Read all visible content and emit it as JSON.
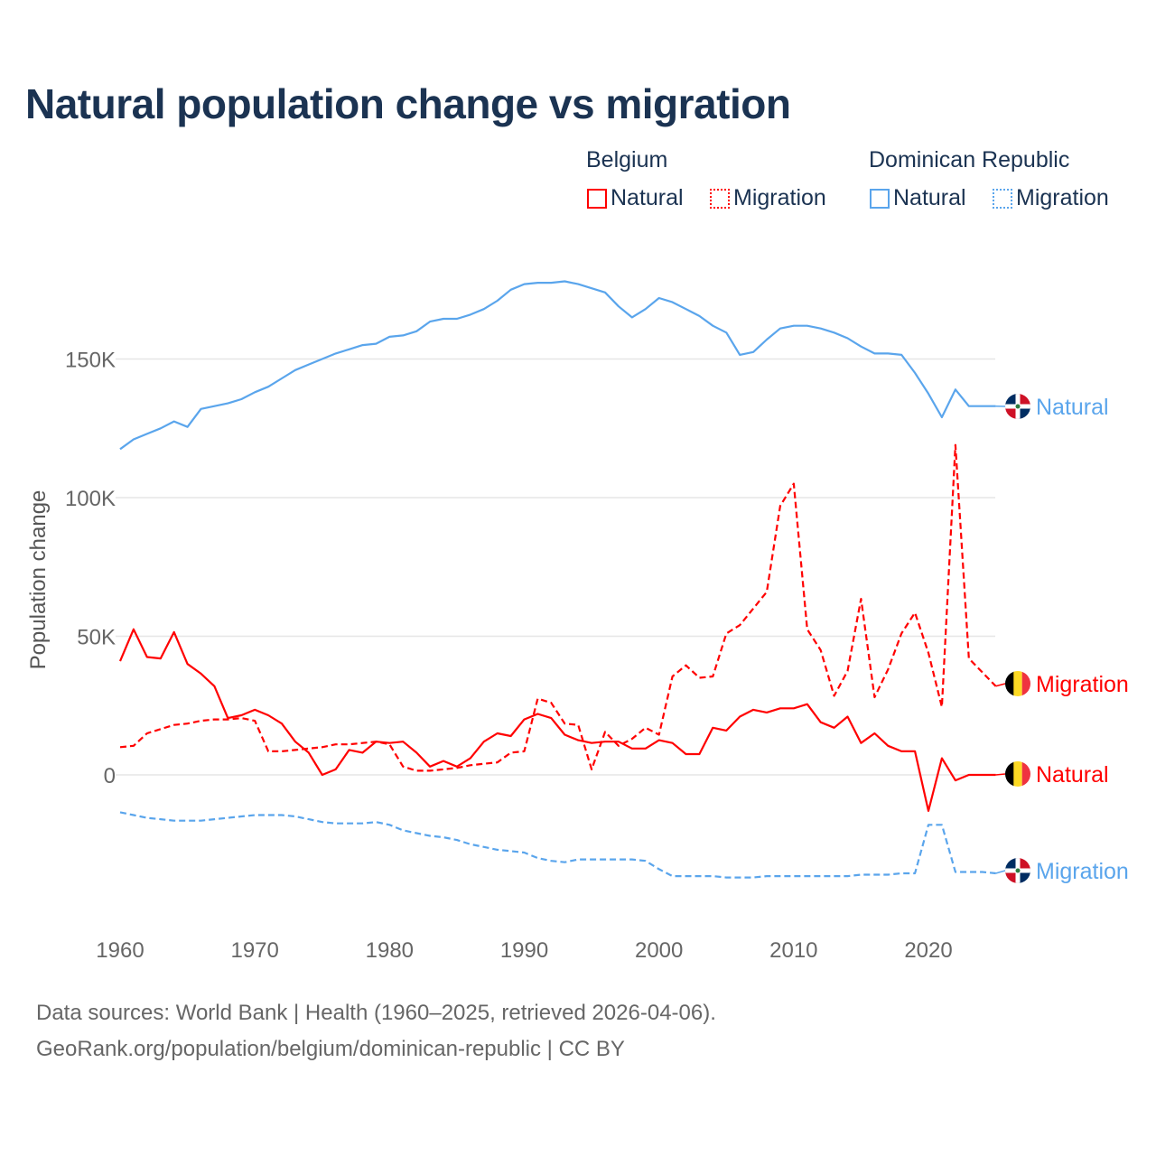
{
  "title": "Natural population change vs migration",
  "legend": {
    "groups": [
      {
        "name": "Belgium",
        "items": [
          "Natural",
          "Migration"
        ],
        "color": "#ff0000"
      },
      {
        "name": "Dominican Republic",
        "items": [
          "Natural",
          "Migration"
        ],
        "color": "#5aa5ec"
      }
    ]
  },
  "footer": {
    "line1": "Data sources: World Bank | Health (1960–2025, retrieved 2026-04-06).",
    "line2": "GeoRank.org/population/belgium/dominican-republic | CC BY"
  },
  "chart_data": {
    "type": "line",
    "title": "Natural population change vs migration",
    "xlabel": "",
    "ylabel": "Population change",
    "xlim": [
      1960,
      2025
    ],
    "ylim": [
      -45000,
      185000
    ],
    "x_ticks": [
      1960,
      1970,
      1980,
      1990,
      2000,
      2010,
      2020
    ],
    "x_tick_labels": [
      "1960",
      "1970",
      "1980",
      "1990",
      "2000",
      "2010",
      "2020"
    ],
    "y_ticks": [
      0,
      50000,
      100000,
      150000
    ],
    "y_tick_labels": [
      "0",
      "50K",
      "100K",
      "150K"
    ],
    "grid": "horizontal",
    "x_start": 1960,
    "series": [
      {
        "name": "Dominican Republic Natural",
        "label": "Natural",
        "country": "Dominican Republic",
        "color": "#5aa5ec",
        "dash": "solid",
        "values": [
          117.5,
          121,
          123,
          125,
          127.5,
          125.5,
          132,
          133,
          134,
          135.5,
          138,
          140,
          143,
          146,
          148,
          150,
          152,
          153.5,
          155,
          155.5,
          158,
          158.5,
          160,
          163.5,
          164.5,
          164.5,
          166,
          168,
          171,
          175,
          177,
          177.5,
          177.5,
          178,
          177,
          175.5,
          174,
          169,
          165,
          168,
          172,
          170.5,
          168,
          165.5,
          162,
          159.5,
          151.5,
          152.5,
          157,
          161,
          162,
          162,
          161,
          159.5,
          157.5,
          154.5,
          152,
          152,
          151.5,
          145,
          137.5,
          129,
          139,
          133,
          133,
          133
        ]
      },
      {
        "name": "Dominican Republic Migration",
        "label": "Migration",
        "country": "Dominican Republic",
        "color": "#5aa5ec",
        "dash": "dashed",
        "values": [
          -13.5,
          -14.5,
          -15.5,
          -16,
          -16.5,
          -16.5,
          -16.5,
          -16,
          -15.5,
          -15,
          -14.5,
          -14.5,
          -14.5,
          -15,
          -16,
          -17,
          -17.5,
          -17.5,
          -17.5,
          -17,
          -18,
          -20,
          -21,
          -22,
          -22.5,
          -23.5,
          -25,
          -26,
          -27,
          -27.5,
          -28,
          -30,
          -31,
          -31.5,
          -30.5,
          -30.5,
          -30.5,
          -30.5,
          -30.5,
          -31,
          -34,
          -36.5,
          -36.5,
          -36.5,
          -36.5,
          -37,
          -37,
          -37,
          -36.5,
          -36.5,
          -36.5,
          -36.5,
          -36.5,
          -36.5,
          -36.5,
          -36,
          -36,
          -36,
          -35.5,
          -35.5,
          -18,
          -18,
          -35,
          -35,
          -35,
          -35.5
        ]
      },
      {
        "name": "Belgium Natural",
        "label": "Natural",
        "country": "Belgium",
        "color": "#ff0000",
        "dash": "solid",
        "values": [
          41,
          52.5,
          42.5,
          42,
          51.5,
          40,
          36.5,
          32,
          20.5,
          21.5,
          23.5,
          21.5,
          18.5,
          12,
          8,
          0,
          2,
          9,
          8,
          12,
          11.5,
          12,
          8,
          3,
          5,
          3,
          6,
          12,
          15,
          14,
          20,
          22,
          20.5,
          14.5,
          12.5,
          11.5,
          12,
          12,
          9.5,
          9.5,
          12.5,
          11.5,
          7.5,
          7.5,
          17,
          16,
          21,
          23.5,
          22.5,
          24,
          24,
          25.5,
          19,
          17,
          21,
          11.5,
          15,
          10.5,
          8.5,
          8.5,
          -13,
          6,
          -2,
          0,
          0,
          0
        ]
      },
      {
        "name": "Belgium Migration",
        "label": "Migration",
        "country": "Belgium",
        "color": "#ff0000",
        "dash": "dashed",
        "values": [
          10,
          10.5,
          15,
          16.5,
          18,
          18.5,
          19.5,
          20,
          20,
          20.5,
          19.5,
          8.5,
          8.5,
          9,
          9.5,
          10,
          11,
          11,
          11.5,
          12,
          11,
          3,
          1.5,
          1.5,
          2,
          2.5,
          3.5,
          4,
          4.5,
          8,
          8.5,
          27.5,
          26,
          18.5,
          18,
          2,
          15.5,
          10.5,
          13,
          17,
          14.5,
          35.5,
          39.5,
          35,
          35.5,
          51,
          54,
          60,
          66,
          97,
          105,
          52.5,
          45,
          28.5,
          37.5,
          63.5,
          28,
          38,
          51,
          58.5,
          44,
          24.5,
          119,
          42,
          37,
          32
        ]
      }
    ],
    "values_unit": "thousands"
  }
}
